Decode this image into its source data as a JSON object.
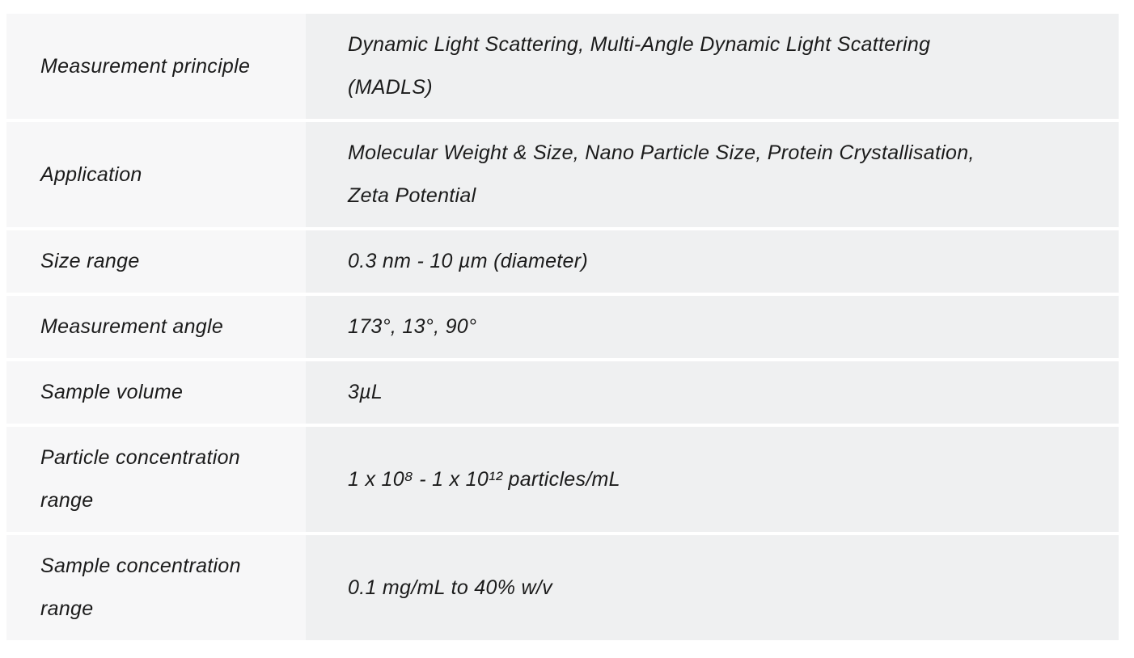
{
  "page": {
    "background": "#ffffff"
  },
  "spec_table": {
    "colors": {
      "label_bg": "#f7f7f8",
      "value_bg": "#eff0f1",
      "gap": "#ffffff",
      "text": "#1b1b1b"
    },
    "rows": [
      {
        "label": "Measurement principle",
        "value_lines": [
          "Dynamic Light Scattering, Multi-Angle Dynamic Light Scattering",
          "(MADLS)"
        ]
      },
      {
        "label": "Application",
        "value_lines": [
          "Molecular Weight & Size, Nano Particle Size, Protein Crystallisation,",
          "Zeta Potential"
        ]
      },
      {
        "label": "Size range",
        "value_lines": [
          "0.3 nm - 10 µm (diameter)"
        ]
      },
      {
        "label": "Measurement angle",
        "value_lines": [
          "173°, 13°, 90°"
        ]
      },
      {
        "label": "Sample volume",
        "value_lines": [
          "3µL"
        ]
      },
      {
        "label": "Particle concentration range",
        "value_lines": [
          "1 x 10⁸ - 1 x 10¹² particles/mL"
        ]
      },
      {
        "label": "Sample concentration range",
        "value_lines": [
          "0.1 mg/mL to 40% w/v"
        ]
      }
    ]
  }
}
